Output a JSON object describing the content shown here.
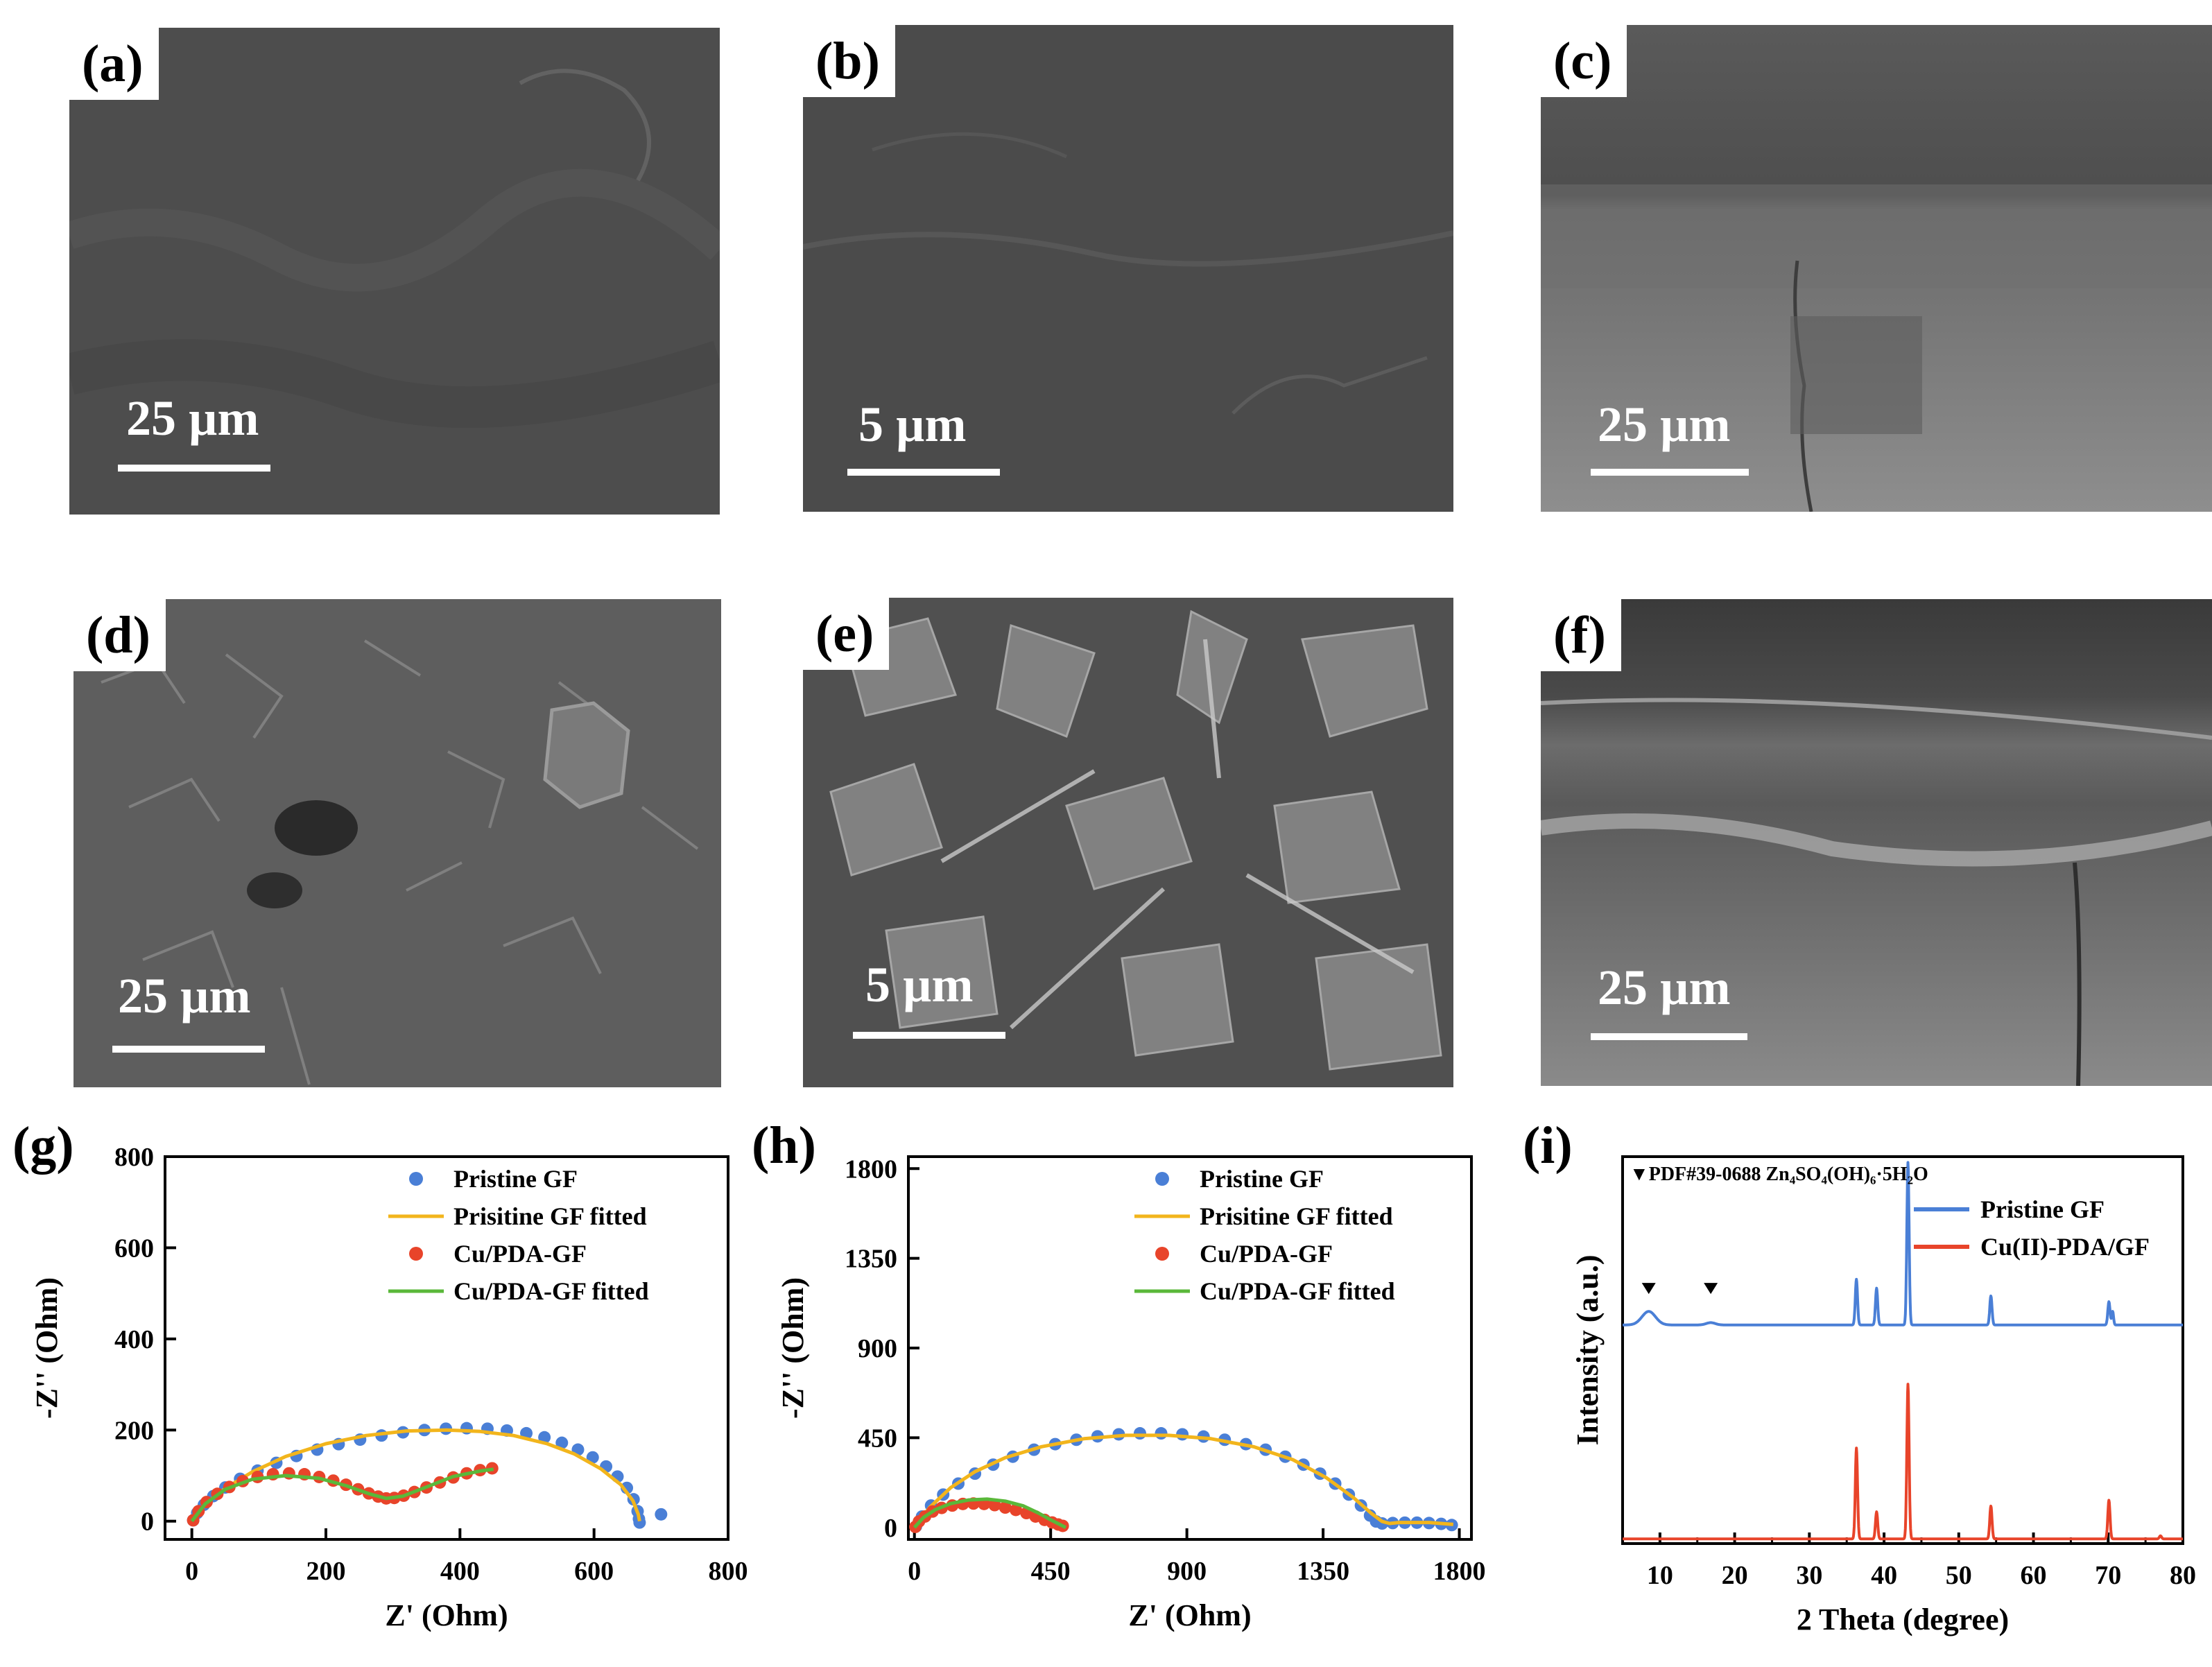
{
  "panels": {
    "a": {
      "label": "(a)",
      "scale": "25 µm"
    },
    "b": {
      "label": "(b)",
      "scale": "5 µm"
    },
    "c": {
      "label": "(c)",
      "scale": "25 µm"
    },
    "d": {
      "label": "(d)",
      "scale": "25 µm"
    },
    "e": {
      "label": "(e)",
      "scale": "5 µm"
    },
    "f": {
      "label": "(f)",
      "scale": "25 µm"
    },
    "g": {
      "label": "(g)"
    },
    "h": {
      "label": "(h)"
    },
    "i": {
      "label": "(i)"
    }
  },
  "colors": {
    "pristine": "#4a7fd6",
    "pristine_fit": "#f2b51c",
    "cu": "#e8442a",
    "cu_fit": "#5ab83a"
  },
  "chart_data": [
    {
      "id": "g",
      "type": "scatter",
      "xlabel": "Z' (Ohm)",
      "ylabel": "-Z'' (Ohm)",
      "xlim": [
        -40,
        800
      ],
      "ylim": [
        -40,
        800
      ],
      "xticks": [
        0,
        200,
        400,
        600,
        800
      ],
      "yticks": [
        0,
        200,
        400,
        600,
        800
      ],
      "legend_position": "top-right",
      "series": [
        {
          "name": "Pristine GF",
          "kind": "points",
          "color_key": "pristine",
          "x": [
            2,
            8,
            18,
            32,
            50,
            72,
            98,
            126,
            156,
            187,
            219,
            251,
            283,
            315,
            347,
            379,
            410,
            441,
            470,
            499,
            526,
            552,
            576,
            598,
            618,
            635,
            649,
            659,
            665,
            667,
            668,
            700
          ],
          "y": [
            2,
            18,
            36,
            55,
            74,
            93,
            111,
            128,
            143,
            157,
            169,
            179,
            188,
            195,
            200,
            203,
            204,
            203,
            199,
            193,
            184,
            172,
            157,
            140,
            120,
            98,
            73,
            48,
            22,
            5,
            -3,
            15
          ]
        },
        {
          "name": "Prisitine GF fitted",
          "kind": "line",
          "color_key": "pristine_fit",
          "x": [
            0,
            20,
            50,
            90,
            140,
            200,
            260,
            320,
            380,
            430,
            480,
            530,
            570,
            610,
            640,
            658,
            666,
            668
          ],
          "y": [
            0,
            38,
            72,
            108,
            142,
            170,
            188,
            198,
            200,
            197,
            188,
            170,
            148,
            115,
            80,
            45,
            15,
            0
          ]
        },
        {
          "name": "Cu/PDA-GF",
          "kind": "points",
          "color_key": "cu",
          "x": [
            2,
            10,
            22,
            38,
            56,
            76,
            98,
            121,
            145,
            168,
            190,
            211,
            230,
            248,
            264,
            278,
            290,
            302,
            316,
            332,
            350,
            370,
            390,
            410,
            430,
            448
          ],
          "y": [
            2,
            22,
            42,
            60,
            75,
            88,
            97,
            103,
            105,
            103,
            97,
            89,
            80,
            70,
            61,
            54,
            50,
            51,
            56,
            64,
            74,
            85,
            96,
            105,
            112,
            116
          ]
        },
        {
          "name": "Cu/PDA-GF fitted",
          "kind": "line",
          "color_key": "cu_fit",
          "x": [
            0,
            20,
            50,
            90,
            140,
            190,
            230,
            265,
            290,
            315,
            350,
            390,
            430,
            450
          ],
          "y": [
            0,
            38,
            70,
            92,
            100,
            94,
            78,
            60,
            50,
            55,
            75,
            98,
            110,
            114
          ]
        }
      ]
    },
    {
      "id": "h",
      "type": "scatter",
      "xlabel": "Z' (Ohm)",
      "ylabel": "-Z'' (Ohm)",
      "xlim": [
        -20,
        1840
      ],
      "ylim": [
        -60,
        1860
      ],
      "xticks": [
        0,
        450,
        900,
        1350,
        1800
      ],
      "yticks": [
        0,
        450,
        900,
        1350,
        1800
      ],
      "legend_position": "top-right",
      "series": [
        {
          "name": "Pristine GF",
          "kind": "points",
          "color_key": "pristine",
          "x": [
            5,
            25,
            55,
            95,
            145,
            200,
            260,
            325,
            395,
            465,
            535,
            605,
            675,
            745,
            815,
            885,
            955,
            1025,
            1095,
            1160,
            1225,
            1285,
            1340,
            1390,
            1435,
            1475,
            1505,
            1525,
            1545,
            1580,
            1620,
            1660,
            1700,
            1740,
            1775
          ],
          "y": [
            5,
            55,
            110,
            165,
            220,
            270,
            315,
            355,
            390,
            418,
            440,
            457,
            467,
            472,
            472,
            467,
            456,
            440,
            418,
            390,
            355,
            315,
            270,
            220,
            165,
            110,
            60,
            30,
            20,
            22,
            24,
            24,
            22,
            18,
            12
          ]
        },
        {
          "name": "Prisitine GF fitted",
          "kind": "line",
          "color_key": "pristine_fit",
          "x": [
            0,
            50,
            120,
            200,
            300,
            420,
            560,
            700,
            840,
            980,
            1120,
            1250,
            1360,
            1450,
            1510,
            1545,
            1570,
            1600,
            1700,
            1780
          ],
          "y": [
            0,
            100,
            200,
            280,
            350,
            405,
            445,
            462,
            462,
            445,
            405,
            340,
            250,
            150,
            70,
            30,
            20,
            25,
            25,
            15
          ]
        },
        {
          "name": "Cu/PDA-GF",
          "kind": "points",
          "color_key": "cu",
          "x": [
            3,
            15,
            35,
            60,
            90,
            125,
            160,
            195,
            230,
            265,
            300,
            335,
            370,
            400,
            430,
            455,
            475,
            490
          ],
          "y": [
            3,
            30,
            55,
            80,
            98,
            110,
            118,
            120,
            118,
            112,
            100,
            88,
            72,
            55,
            38,
            25,
            15,
            8
          ]
        },
        {
          "name": "Cu/PDA-GF fitted",
          "kind": "line",
          "color_key": "cu_fit",
          "x": [
            0,
            30,
            70,
            120,
            180,
            240,
            300,
            360,
            410,
            450,
            480,
            500
          ],
          "y": [
            0,
            50,
            90,
            120,
            138,
            142,
            132,
            108,
            72,
            38,
            15,
            0
          ]
        }
      ]
    },
    {
      "id": "i",
      "type": "line",
      "xlabel": "2 Theta (degree)",
      "ylabel": "Intensity (a.u.)",
      "xlim": [
        5,
        80
      ],
      "ylim": [
        0,
        1
      ],
      "xticks": [
        10,
        20,
        30,
        40,
        50,
        60,
        70,
        80
      ],
      "y_ticklabels_shown": false,
      "legend_position": "top-right",
      "annotation": "▼PDF#39-0688  Zn₄SO₄(OH)₆·5H₂O",
      "markers_x": [
        8.5,
        16.8
      ],
      "series": [
        {
          "name": "Pristine GF",
          "color_key": "pristine",
          "baseline": 0.565,
          "peaks": [
            [
              8.5,
              0.035,
              0.9
            ],
            [
              16.8,
              0.006,
              0.6
            ],
            [
              36.3,
              0.118,
              0.15
            ],
            [
              39.0,
              0.095,
              0.15
            ],
            [
              43.2,
              0.42,
              0.15
            ],
            [
              54.3,
              0.075,
              0.15
            ],
            [
              70.1,
              0.06,
              0.15
            ],
            [
              70.6,
              0.035,
              0.12
            ]
          ]
        },
        {
          "name": "Cu(II)-PDA/GF",
          "color_key": "cu",
          "baseline": 0.012,
          "peaks": [
            [
              36.3,
              0.235,
              0.15
            ],
            [
              39.0,
              0.07,
              0.15
            ],
            [
              43.2,
              0.4,
              0.15
            ],
            [
              54.3,
              0.085,
              0.15
            ],
            [
              70.1,
              0.1,
              0.15
            ],
            [
              77.0,
              0.008,
              0.15
            ]
          ]
        }
      ]
    }
  ]
}
